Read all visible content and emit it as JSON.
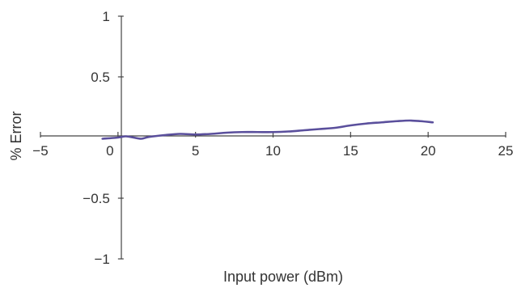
{
  "chart_data": {
    "type": "line",
    "title": "",
    "xlabel": "Input power (dBm)",
    "ylabel": "% Error",
    "xlim": [
      -5,
      25
    ],
    "ylim": [
      -1,
      1
    ],
    "x_ticks": [
      -5,
      0,
      5,
      10,
      15,
      20,
      25
    ],
    "x_tick_labels": [
      "−5",
      "0",
      "5",
      "10",
      "15",
      "20",
      "25"
    ],
    "y_ticks": [
      -1,
      -0.5,
      0.5,
      1
    ],
    "y_tick_labels": [
      "−1",
      "−0.5",
      "0.5",
      "1"
    ],
    "grid": false,
    "legend": "none",
    "series": [
      {
        "color": "#5a4f9c",
        "x": [
          -1,
          0,
          0.5,
          1,
          1.5,
          2,
          3,
          4,
          5,
          6,
          7,
          8,
          9,
          10,
          11,
          12,
          13,
          14,
          15,
          16,
          17,
          18,
          18.8,
          19.5,
          20.3
        ],
        "y": [
          -0.01,
          0,
          0.01,
          0,
          -0.01,
          0.005,
          0.02,
          0.03,
          0.025,
          0.03,
          0.04,
          0.045,
          0.045,
          0.045,
          0.05,
          0.06,
          0.07,
          0.08,
          0.1,
          0.115,
          0.125,
          0.135,
          0.14,
          0.135,
          0.125
        ]
      }
    ]
  }
}
